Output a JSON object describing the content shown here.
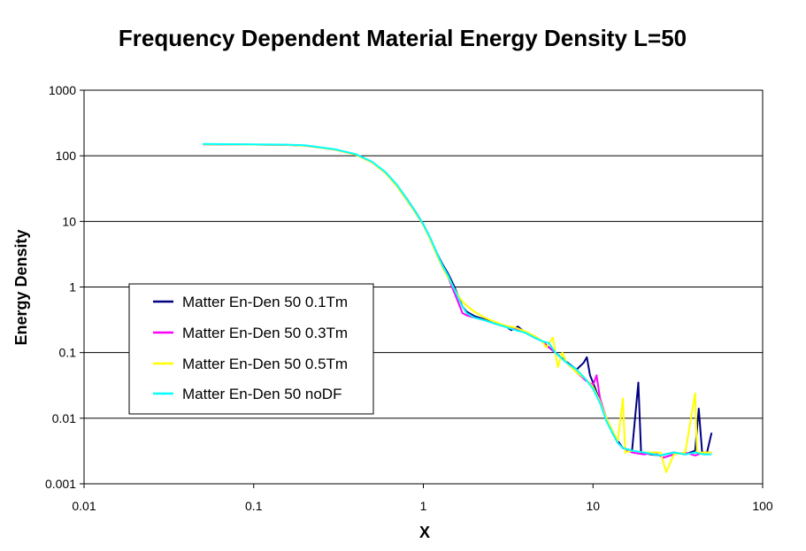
{
  "chart_data": {
    "type": "line",
    "title": "Frequency Dependent Material Energy Density L=50",
    "xlabel": "X",
    "ylabel": "Energy Density",
    "xscale": "log",
    "yscale": "log",
    "xlim": [
      0.01,
      100
    ],
    "ylim": [
      0.001,
      1000
    ],
    "x_ticks": [
      "0.01",
      "0.1",
      "1",
      "10",
      "100"
    ],
    "y_ticks": [
      "0.001",
      "0.01",
      "0.1",
      "1",
      "10",
      "100",
      "1000"
    ],
    "grid": "horizontal major gridlines",
    "legend_position": "left-center",
    "series": [
      {
        "name": "Matter En-Den 50 0.1Tm",
        "color": "#000080",
        "points": [
          [
            0.05,
            150
          ],
          [
            0.1,
            148
          ],
          [
            0.15,
            147
          ],
          [
            0.2,
            143
          ],
          [
            0.3,
            125
          ],
          [
            0.4,
            105
          ],
          [
            0.5,
            80
          ],
          [
            0.6,
            55
          ],
          [
            0.7,
            35
          ],
          [
            0.8,
            22
          ],
          [
            0.9,
            14
          ],
          [
            1.0,
            9
          ],
          [
            1.1,
            5.5
          ],
          [
            1.2,
            3.3
          ],
          [
            1.3,
            2.2
          ],
          [
            1.4,
            1.6
          ],
          [
            1.5,
            1.1
          ],
          [
            1.6,
            0.75
          ],
          [
            1.7,
            0.5
          ],
          [
            1.8,
            0.42
          ],
          [
            2.0,
            0.36
          ],
          [
            2.3,
            0.32
          ],
          [
            2.6,
            0.28
          ],
          [
            2.8,
            0.27
          ],
          [
            3.0,
            0.26
          ],
          [
            3.3,
            0.22
          ],
          [
            3.6,
            0.25
          ],
          [
            4.0,
            0.2
          ],
          [
            4.5,
            0.17
          ],
          [
            5.0,
            0.15
          ],
          [
            5.5,
            0.12
          ],
          [
            6.0,
            0.1
          ],
          [
            7.0,
            0.072
          ],
          [
            8.0,
            0.055
          ],
          [
            8.8,
            0.07
          ],
          [
            9.2,
            0.085
          ],
          [
            9.6,
            0.045
          ],
          [
            10.0,
            0.035
          ],
          [
            11,
            0.018
          ],
          [
            12,
            0.01
          ],
          [
            13,
            0.006
          ],
          [
            14,
            0.0045
          ],
          [
            15,
            0.0035
          ],
          [
            17,
            0.0032
          ],
          [
            18.5,
            0.035
          ],
          [
            19.2,
            0.003
          ],
          [
            22,
            0.0028
          ],
          [
            25,
            0.0027
          ],
          [
            30,
            0.003
          ],
          [
            35,
            0.0028
          ],
          [
            40,
            0.0032
          ],
          [
            42,
            0.014
          ],
          [
            44,
            0.003
          ],
          [
            47,
            0.003
          ],
          [
            50,
            0.006
          ]
        ]
      },
      {
        "name": "Matter En-Den 50 0.3Tm",
        "color": "#ff00ff",
        "points": [
          [
            0.05,
            150
          ],
          [
            0.1,
            148
          ],
          [
            0.15,
            147
          ],
          [
            0.2,
            143
          ],
          [
            0.3,
            124
          ],
          [
            0.4,
            104
          ],
          [
            0.5,
            79
          ],
          [
            0.6,
            54
          ],
          [
            0.7,
            34
          ],
          [
            0.8,
            21
          ],
          [
            0.9,
            13.5
          ],
          [
            1.0,
            8.8
          ],
          [
            1.1,
            5.3
          ],
          [
            1.2,
            3.1
          ],
          [
            1.3,
            2.0
          ],
          [
            1.4,
            1.4
          ],
          [
            1.5,
            0.9
          ],
          [
            1.6,
            0.6
          ],
          [
            1.7,
            0.4
          ],
          [
            1.8,
            0.37
          ],
          [
            2.0,
            0.34
          ],
          [
            2.3,
            0.31
          ],
          [
            2.6,
            0.28
          ],
          [
            3.0,
            0.25
          ],
          [
            3.5,
            0.23
          ],
          [
            4.0,
            0.2
          ],
          [
            4.5,
            0.18
          ],
          [
            5.0,
            0.15
          ],
          [
            6.0,
            0.1
          ],
          [
            7.0,
            0.07
          ],
          [
            8.0,
            0.05
          ],
          [
            9.0,
            0.038
          ],
          [
            10.0,
            0.032
          ],
          [
            10.5,
            0.045
          ],
          [
            11,
            0.02
          ],
          [
            12,
            0.01
          ],
          [
            13,
            0.006
          ],
          [
            14,
            0.0042
          ],
          [
            15,
            0.0035
          ],
          [
            17,
            0.003
          ],
          [
            20,
            0.0028
          ],
          [
            23,
            0.003
          ],
          [
            26,
            0.0025
          ],
          [
            30,
            0.0028
          ],
          [
            35,
            0.003
          ],
          [
            40,
            0.0027
          ],
          [
            45,
            0.003
          ],
          [
            50,
            0.003
          ]
        ]
      },
      {
        "name": "Matter En-Den 50 0.5Tm",
        "color": "#ffff00",
        "points": [
          [
            0.05,
            150
          ],
          [
            0.1,
            148
          ],
          [
            0.15,
            147
          ],
          [
            0.2,
            143
          ],
          [
            0.3,
            124
          ],
          [
            0.4,
            104
          ],
          [
            0.5,
            79
          ],
          [
            0.6,
            54
          ],
          [
            0.7,
            34
          ],
          [
            0.8,
            21
          ],
          [
            0.9,
            13.5
          ],
          [
            1.0,
            8.8
          ],
          [
            1.1,
            5.3
          ],
          [
            1.2,
            3.1
          ],
          [
            1.3,
            2.0
          ],
          [
            1.4,
            1.4
          ],
          [
            1.5,
            1.0
          ],
          [
            1.6,
            0.75
          ],
          [
            1.7,
            0.6
          ],
          [
            1.8,
            0.52
          ],
          [
            2.0,
            0.42
          ],
          [
            2.3,
            0.34
          ],
          [
            2.6,
            0.3
          ],
          [
            3.0,
            0.26
          ],
          [
            3.5,
            0.24
          ],
          [
            4.0,
            0.21
          ],
          [
            4.5,
            0.18
          ],
          [
            5.0,
            0.15
          ],
          [
            5.3,
            0.12
          ],
          [
            5.8,
            0.17
          ],
          [
            6.2,
            0.06
          ],
          [
            6.6,
            0.1
          ],
          [
            7.0,
            0.07
          ],
          [
            8.0,
            0.05
          ],
          [
            9.0,
            0.04
          ],
          [
            10.0,
            0.03
          ],
          [
            11,
            0.018
          ],
          [
            12,
            0.01
          ],
          [
            13,
            0.0065
          ],
          [
            14,
            0.0045
          ],
          [
            15,
            0.02
          ],
          [
            15.5,
            0.003
          ],
          [
            17,
            0.0032
          ],
          [
            20,
            0.003
          ],
          [
            25,
            0.003
          ],
          [
            27,
            0.0015
          ],
          [
            30,
            0.0028
          ],
          [
            35,
            0.003
          ],
          [
            40,
            0.024
          ],
          [
            41,
            0.003
          ],
          [
            45,
            0.003
          ],
          [
            50,
            0.003
          ]
        ]
      },
      {
        "name": "Matter En-Den 50 noDF",
        "color": "#00ffff",
        "points": [
          [
            0.05,
            152
          ],
          [
            0.1,
            149
          ],
          [
            0.15,
            148
          ],
          [
            0.2,
            145
          ],
          [
            0.3,
            126
          ],
          [
            0.4,
            106
          ],
          [
            0.5,
            81
          ],
          [
            0.6,
            56
          ],
          [
            0.7,
            36
          ],
          [
            0.8,
            22
          ],
          [
            0.9,
            14
          ],
          [
            1.0,
            9
          ],
          [
            1.1,
            5.6
          ],
          [
            1.2,
            3.3
          ],
          [
            1.3,
            2.1
          ],
          [
            1.4,
            1.5
          ],
          [
            1.5,
            1.0
          ],
          [
            1.6,
            0.7
          ],
          [
            1.7,
            0.5
          ],
          [
            1.8,
            0.4
          ],
          [
            2.0,
            0.34
          ],
          [
            2.3,
            0.31
          ],
          [
            2.6,
            0.28
          ],
          [
            3.0,
            0.25
          ],
          [
            3.5,
            0.22
          ],
          [
            4.0,
            0.2
          ],
          [
            4.5,
            0.17
          ],
          [
            5.0,
            0.15
          ],
          [
            5.5,
            0.14
          ],
          [
            6.0,
            0.1
          ],
          [
            7.0,
            0.07
          ],
          [
            8.0,
            0.055
          ],
          [
            9.0,
            0.04
          ],
          [
            10.0,
            0.028
          ],
          [
            11,
            0.017
          ],
          [
            12,
            0.009
          ],
          [
            13,
            0.006
          ],
          [
            14,
            0.0042
          ],
          [
            15,
            0.0035
          ],
          [
            17,
            0.0032
          ],
          [
            20,
            0.003
          ],
          [
            25,
            0.0027
          ],
          [
            30,
            0.003
          ],
          [
            35,
            0.0028
          ],
          [
            40,
            0.003
          ],
          [
            45,
            0.0028
          ],
          [
            50,
            0.0028
          ]
        ]
      }
    ]
  }
}
